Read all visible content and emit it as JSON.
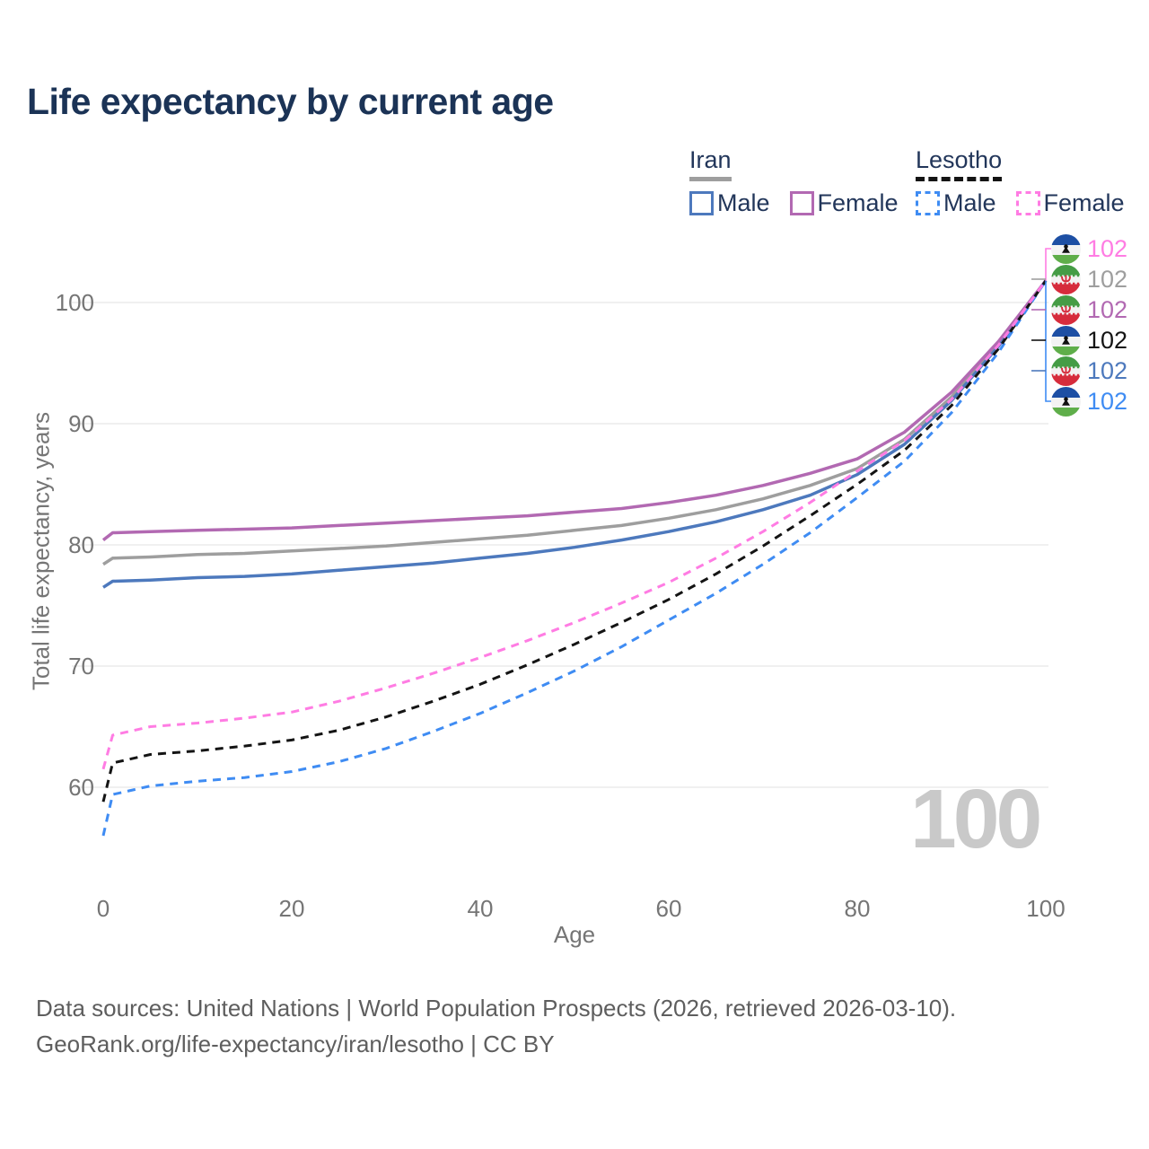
{
  "title": "Life expectancy by current age",
  "legend": {
    "groups": [
      {
        "name": "Iran",
        "line_style": "solid",
        "line_color": "#9e9e9e",
        "items": [
          {
            "label": "Male",
            "color": "#4d79bd",
            "dashed": false
          },
          {
            "label": "Female",
            "color": "#b269b2",
            "dashed": false
          }
        ]
      },
      {
        "name": "Lesotho",
        "line_style": "dashed",
        "line_color": "#141414",
        "items": [
          {
            "label": "Male",
            "color": "#3f8cf3",
            "dashed": true
          },
          {
            "label": "Female",
            "color": "#ff7ce3",
            "dashed": true
          }
        ]
      }
    ]
  },
  "chart_data": {
    "type": "line",
    "title": "Life expectancy by current age",
    "xlabel": "Age",
    "ylabel": "Total life expectancy, years",
    "xlim": [
      0,
      100
    ],
    "ylim": [
      55,
      104
    ],
    "xticks": [
      0,
      20,
      40,
      60,
      80,
      100
    ],
    "yticks": [
      60,
      70,
      80,
      90,
      100
    ],
    "grid": "horizontal-only",
    "legend_position": "top-right",
    "x": [
      0,
      1,
      5,
      10,
      15,
      20,
      25,
      30,
      35,
      40,
      45,
      50,
      55,
      60,
      65,
      70,
      75,
      80,
      85,
      90,
      95,
      100
    ],
    "series": [
      {
        "name": "Iran Total",
        "country": "Iran",
        "sex": "Both",
        "color": "#9e9e9e",
        "dashed": false,
        "values": [
          78.4,
          78.9,
          79.0,
          79.2,
          79.3,
          79.5,
          79.7,
          79.9,
          80.2,
          80.5,
          80.8,
          81.2,
          81.6,
          82.2,
          82.9,
          83.8,
          84.9,
          86.3,
          88.7,
          92.2,
          96.6,
          101.8
        ]
      },
      {
        "name": "Iran Male",
        "country": "Iran",
        "sex": "Male",
        "color": "#4d79bd",
        "dashed": false,
        "values": [
          76.5,
          77.0,
          77.1,
          77.3,
          77.4,
          77.6,
          77.9,
          78.2,
          78.5,
          78.9,
          79.3,
          79.8,
          80.4,
          81.1,
          81.9,
          82.9,
          84.1,
          85.8,
          88.3,
          91.9,
          96.4,
          101.8
        ]
      },
      {
        "name": "Iran Female",
        "country": "Iran",
        "sex": "Female",
        "color": "#b269b2",
        "dashed": false,
        "values": [
          80.4,
          81.0,
          81.1,
          81.2,
          81.3,
          81.4,
          81.6,
          81.8,
          82.0,
          82.2,
          82.4,
          82.7,
          83.0,
          83.5,
          84.1,
          84.9,
          85.9,
          87.1,
          89.3,
          92.6,
          96.8,
          101.8
        ]
      },
      {
        "name": "Lesotho Male",
        "country": "Lesotho",
        "sex": "Male",
        "color": "#3f8cf3",
        "dashed": true,
        "values": [
          56.0,
          59.4,
          60.1,
          60.5,
          60.8,
          61.3,
          62.1,
          63.2,
          64.6,
          66.1,
          67.8,
          69.6,
          71.6,
          73.8,
          76.0,
          78.4,
          81.0,
          83.9,
          86.9,
          90.9,
          95.9,
          101.8
        ]
      },
      {
        "name": "Lesotho Total",
        "country": "Lesotho",
        "sex": "Both",
        "color": "#141414",
        "dashed": true,
        "values": [
          58.8,
          62.0,
          62.7,
          63.0,
          63.4,
          63.9,
          64.7,
          65.8,
          67.1,
          68.5,
          70.1,
          71.8,
          73.6,
          75.5,
          77.6,
          79.9,
          82.4,
          85.0,
          87.8,
          91.5,
          96.2,
          101.8
        ]
      },
      {
        "name": "Lesotho Female",
        "country": "Lesotho",
        "sex": "Female",
        "color": "#ff7ce3",
        "dashed": true,
        "values": [
          61.5,
          64.3,
          65.0,
          65.3,
          65.7,
          66.2,
          67.1,
          68.2,
          69.4,
          70.7,
          72.1,
          73.6,
          75.2,
          76.9,
          78.9,
          81.1,
          83.5,
          86.1,
          88.6,
          92.0,
          96.5,
          101.8
        ]
      }
    ],
    "end_labels": [
      {
        "series": "Lesotho Female",
        "flag": "lesotho",
        "value": "102",
        "color": "#ff7ce3"
      },
      {
        "series": "Iran Total",
        "flag": "iran",
        "value": "102",
        "color": "#9e9e9e"
      },
      {
        "series": "Iran Female",
        "flag": "iran",
        "value": "102",
        "color": "#b269b2"
      },
      {
        "series": "Lesotho Total",
        "flag": "lesotho",
        "value": "102",
        "color": "#141414"
      },
      {
        "series": "Iran Male",
        "flag": "iran",
        "value": "102",
        "color": "#4d79bd"
      },
      {
        "series": "Lesotho Male",
        "flag": "lesotho",
        "value": "102",
        "color": "#3f8cf3"
      }
    ],
    "watermark": "100"
  },
  "footer": {
    "line1": "Data sources: United Nations | World Population Prospects (2026, retrieved 2026-03-10).",
    "line2": "GeoRank.org/life-expectancy/iran/lesotho | CC BY"
  }
}
